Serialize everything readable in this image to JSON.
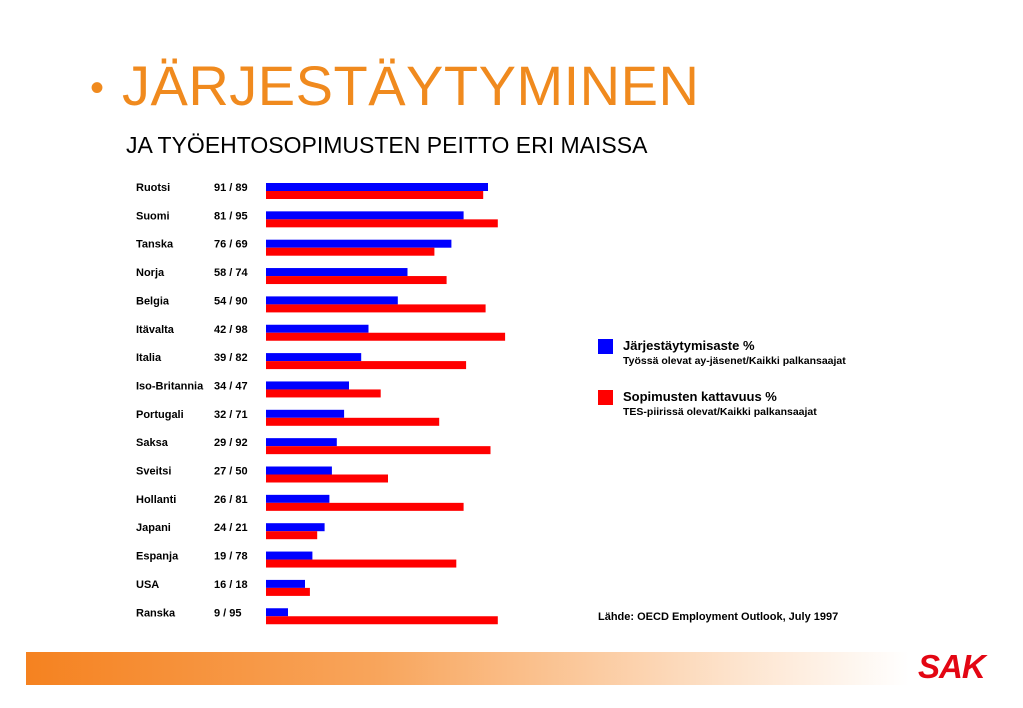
{
  "header": {
    "bullet": "•",
    "title": "JÄRJESTÄYTYMINEN",
    "subtitle": "JA TYÖEHTOSOPIMUSTEN PEITTO ERI MAISSA"
  },
  "chart_data": {
    "type": "bar",
    "orientation": "horizontal",
    "categories": [
      "Ruotsi",
      "Suomi",
      "Tanska",
      "Norja",
      "Belgia",
      "Itävalta",
      "Italia",
      "Iso-Britannia",
      "Portugali",
      "Saksa",
      "Sveitsi",
      "Hollanti",
      "Japani",
      "Espanja",
      "USA",
      "Ranska"
    ],
    "value_labels": [
      "91 / 89",
      "81 / 95",
      "76 / 69",
      "58 / 74",
      "54 / 90",
      "42 / 98",
      "39 / 82",
      "34 / 47",
      "32 / 71",
      "29 / 92",
      "27 / 50",
      "26 / 81",
      "24 / 21",
      "19 / 78",
      "16 / 18",
      "9 / 95"
    ],
    "series": [
      {
        "name": "Järjestäytymisaste %",
        "description": "Työssä olevat ay-jäsenet/Kaikki palkansaajat",
        "color": "#0000ff",
        "values": [
          91,
          81,
          76,
          58,
          54,
          42,
          39,
          34,
          32,
          29,
          27,
          26,
          24,
          19,
          16,
          9
        ]
      },
      {
        "name": "Sopimusten kattavuus %",
        "description": "TES-piirissä olevat/Kaikki palkansaajat",
        "color": "#ff0000",
        "values": [
          89,
          95,
          69,
          74,
          90,
          98,
          82,
          47,
          71,
          92,
          50,
          81,
          21,
          78,
          18,
          95
        ]
      }
    ],
    "xlim": [
      0,
      100
    ],
    "grid": false,
    "legend_position": "right",
    "source": "Lähde: OECD Employment Outlook, July 1997"
  },
  "footer": {
    "logo": "SAK",
    "bar_color_start": "#f58220",
    "bar_color_end": "#ffffff"
  }
}
